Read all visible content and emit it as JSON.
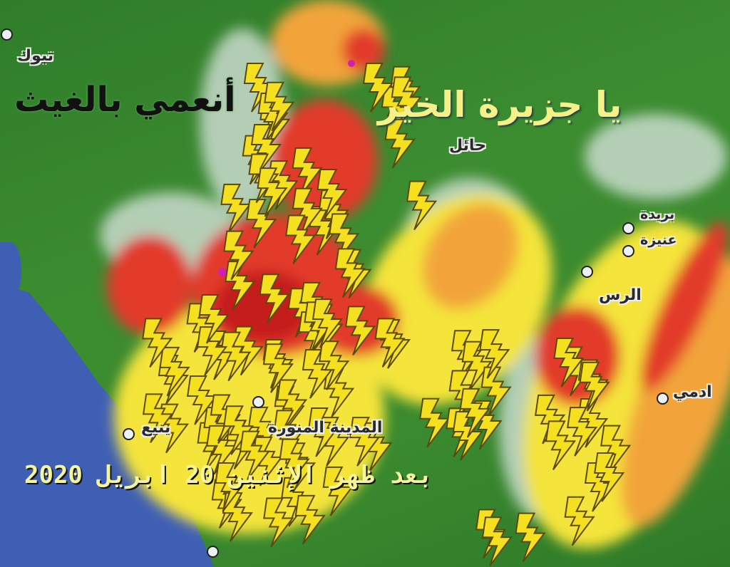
{
  "map": {
    "type": "weather-radar",
    "headline_left": "أنعمي بالغيث",
    "headline_right": "يا جزيرة الخير",
    "date_caption": "بعد ظهر الإثنين 20 ابريل 2020",
    "cities": [
      {
        "name": "تبوك"
      },
      {
        "name": "حائل"
      },
      {
        "name": "بريدة"
      },
      {
        "name": "عنيزة"
      },
      {
        "name": "الرس"
      },
      {
        "name": "ادمي"
      },
      {
        "name": "ينبع"
      },
      {
        "name": "المدينة المنورة"
      }
    ],
    "colors": {
      "sea": "#3f5fb4",
      "land": "#3a8a2f",
      "light_rain": "#f4e43a",
      "moderate_rain": "#f2a43a",
      "heavy_rain": "#e23a2b",
      "lightning": "#f5e020"
    },
    "icons": [
      "lightning-icon",
      "city-marker-icon"
    ]
  }
}
